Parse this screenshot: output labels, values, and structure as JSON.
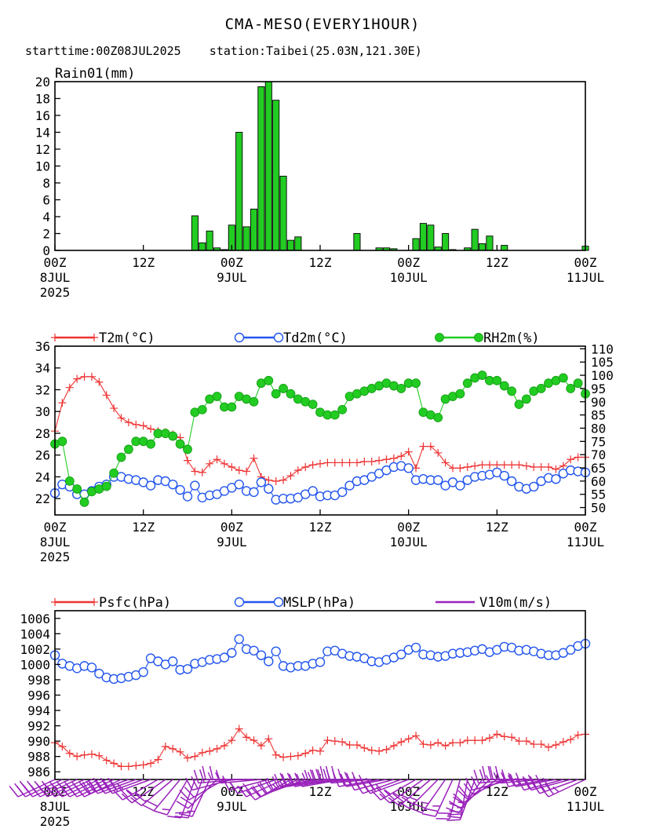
{
  "title": "CMA-MESO(EVERY1HOUR)",
  "subtitle": "starttime:00Z08JUL2025    station:Taibei(25.03N,121.30E)",
  "x_axis": {
    "hours": [
      0,
      12,
      24,
      36,
      48,
      60,
      72
    ],
    "labels": [
      "00Z",
      "12Z",
      "00Z",
      "12Z",
      "00Z",
      "12Z",
      "00Z"
    ],
    "day_labels": {
      "0": "8JUL",
      "24": "9JUL",
      "48": "10JUL",
      "72": "11JUL"
    },
    "year_label": "2025"
  },
  "chart_data": [
    {
      "type": "bar",
      "title": "Rain01(mm)",
      "x_unit": "hours since 00Z08JUL2025",
      "ylim": [
        0,
        20
      ],
      "yticks": [
        0,
        2,
        4,
        6,
        8,
        10,
        12,
        14,
        16,
        18,
        20
      ],
      "color": "#22cc22",
      "x": [
        19,
        20,
        21,
        22,
        23,
        24,
        25,
        26,
        27,
        28,
        29,
        30,
        31,
        32,
        33,
        34,
        35,
        41,
        44,
        45,
        46,
        49,
        50,
        51,
        52,
        53,
        54,
        56,
        57,
        58,
        59,
        61,
        72
      ],
      "values": [
        4.1,
        0.9,
        2.3,
        0.3,
        0.1,
        3.0,
        14.0,
        2.8,
        4.9,
        19.4,
        20.0,
        17.8,
        8.8,
        1.2,
        1.6,
        0,
        0,
        2.0,
        0.3,
        0.3,
        0.2,
        1.4,
        3.2,
        3.0,
        0.4,
        2.0,
        0.1,
        0.3,
        2.5,
        0.8,
        1.7,
        0.6,
        0.5
      ]
    },
    {
      "type": "line",
      "x_unit": "hours since 00Z08JUL2025",
      "left_ylim": [
        20.5,
        36
      ],
      "left_yticks": [
        22,
        24,
        26,
        28,
        30,
        32,
        34,
        36
      ],
      "right_ylim": [
        47.2,
        111
      ],
      "right_yticks": [
        50,
        55,
        60,
        65,
        70,
        75,
        80,
        85,
        90,
        95,
        100,
        105,
        110
      ],
      "series": [
        {
          "name": "T2m(°C)",
          "axis": "left",
          "color": "#ee3333",
          "marker": "plus",
          "x": [
            0,
            1,
            2,
            3,
            4,
            5,
            6,
            7,
            8,
            9,
            10,
            11,
            12,
            13,
            14,
            15,
            16,
            17,
            18,
            19,
            20,
            21,
            22,
            23,
            24,
            25,
            26,
            27,
            28,
            29,
            30,
            31,
            32,
            33,
            34,
            35,
            36,
            37,
            38,
            39,
            40,
            41,
            42,
            43,
            44,
            45,
            46,
            47,
            48,
            49,
            50,
            51,
            52,
            53,
            54,
            55,
            56,
            57,
            58,
            59,
            60,
            61,
            62,
            63,
            64,
            65,
            66,
            67,
            68,
            69,
            70,
            71,
            72
          ],
          "values": [
            28.2,
            30.8,
            32.2,
            33.0,
            33.2,
            33.2,
            32.7,
            31.5,
            30.3,
            29.4,
            29.0,
            28.8,
            28.7,
            28.4,
            28.2,
            28.1,
            27.9,
            27.6,
            25.5,
            24.5,
            24.4,
            25.2,
            25.6,
            25.2,
            24.9,
            24.6,
            24.5,
            25.7,
            24.0,
            23.7,
            23.6,
            23.7,
            24.1,
            24.6,
            24.9,
            25.1,
            25.2,
            25.3,
            25.3,
            25.3,
            25.3,
            25.3,
            25.4,
            25.4,
            25.5,
            25.6,
            25.7,
            25.9,
            26.3,
            24.8,
            26.8,
            26.8,
            26.2,
            25.3,
            24.8,
            24.8,
            24.9,
            25.0,
            25.1,
            25.1,
            25.1,
            25.1,
            25.1,
            25.1,
            25.0,
            24.9,
            24.9,
            24.9,
            24.7,
            25.0,
            25.6,
            25.8,
            25.8
          ]
        },
        {
          "name": "Td2m(°C)",
          "axis": "left",
          "color": "#2255ee",
          "marker": "circle",
          "x": [
            0,
            1,
            2,
            3,
            4,
            5,
            6,
            7,
            8,
            9,
            10,
            11,
            12,
            13,
            14,
            15,
            16,
            17,
            18,
            19,
            20,
            21,
            22,
            23,
            24,
            25,
            26,
            27,
            28,
            29,
            30,
            31,
            32,
            33,
            34,
            35,
            36,
            37,
            38,
            39,
            40,
            41,
            42,
            43,
            44,
            45,
            46,
            47,
            48,
            49,
            50,
            51,
            52,
            53,
            54,
            55,
            56,
            57,
            58,
            59,
            60,
            61,
            62,
            63,
            64,
            65,
            66,
            67,
            68,
            69,
            70,
            71,
            72
          ],
          "values": [
            22.5,
            23.3,
            23.1,
            22.4,
            22.4,
            22.7,
            23.1,
            23.3,
            24.0,
            24.0,
            23.8,
            23.7,
            23.5,
            23.2,
            23.7,
            23.6,
            23.3,
            22.8,
            22.2,
            23.2,
            22.1,
            22.3,
            22.4,
            22.7,
            23.0,
            23.3,
            22.7,
            22.6,
            23.5,
            22.9,
            21.9,
            22.0,
            22.0,
            22.1,
            22.4,
            22.7,
            22.2,
            22.3,
            22.3,
            22.6,
            23.2,
            23.6,
            23.7,
            24.0,
            24.3,
            24.6,
            24.9,
            25.0,
            24.8,
            23.7,
            23.8,
            23.7,
            23.7,
            23.2,
            23.5,
            23.2,
            23.7,
            24.0,
            24.1,
            24.2,
            24.4,
            24.1,
            23.6,
            23.1,
            22.9,
            23.1,
            23.6,
            23.9,
            23.8,
            24.3,
            24.6,
            24.5,
            24.4
          ]
        },
        {
          "name": "RH2m(%)",
          "axis": "right",
          "color": "#22cc22",
          "marker": "filled-circle",
          "x": [
            0,
            1,
            2,
            3,
            4,
            5,
            6,
            7,
            8,
            9,
            10,
            11,
            12,
            13,
            14,
            15,
            16,
            17,
            18,
            19,
            20,
            21,
            22,
            23,
            24,
            25,
            26,
            27,
            28,
            29,
            30,
            31,
            32,
            33,
            34,
            35,
            36,
            37,
            38,
            39,
            40,
            41,
            42,
            43,
            44,
            45,
            46,
            47,
            48,
            49,
            50,
            51,
            52,
            53,
            54,
            55,
            56,
            57,
            58,
            59,
            60,
            61,
            62,
            63,
            64,
            65,
            66,
            67,
            68,
            69,
            70,
            71,
            72
          ],
          "values": [
            74,
            75,
            60,
            57,
            52,
            56,
            57,
            58,
            63,
            69,
            72,
            75,
            75,
            74,
            78,
            78,
            77,
            74,
            72,
            86,
            87,
            91,
            92,
            88,
            88,
            92,
            91,
            90,
            97,
            98,
            93,
            95,
            93,
            91,
            90,
            89,
            86,
            85,
            85,
            87,
            92,
            93,
            94,
            95,
            96,
            97,
            96,
            95,
            97,
            97,
            86,
            85,
            84,
            91,
            92,
            93,
            97,
            99,
            100,
            98,
            98,
            96,
            94,
            89,
            91,
            94,
            95,
            97,
            98,
            99,
            95,
            97,
            93
          ]
        }
      ]
    },
    {
      "type": "line",
      "x_unit": "hours since 00Z08JUL2025",
      "ylim": [
        985,
        1007
      ],
      "yticks": [
        986,
        988,
        990,
        992,
        994,
        996,
        998,
        1000,
        1002,
        1004,
        1006
      ],
      "series": [
        {
          "name": "Psfc(hPa)",
          "color": "#ee3333",
          "marker": "plus",
          "x": [
            0,
            1,
            2,
            3,
            4,
            5,
            6,
            7,
            8,
            9,
            10,
            11,
            12,
            13,
            14,
            15,
            16,
            17,
            18,
            19,
            20,
            21,
            22,
            23,
            24,
            25,
            26,
            27,
            28,
            29,
            30,
            31,
            32,
            33,
            34,
            35,
            36,
            37,
            38,
            39,
            40,
            41,
            42,
            43,
            44,
            45,
            46,
            47,
            48,
            49,
            50,
            51,
            52,
            53,
            54,
            55,
            56,
            57,
            58,
            59,
            60,
            61,
            62,
            63,
            64,
            65,
            66,
            67,
            68,
            69,
            70,
            71,
            72
          ],
          "values": [
            989.8,
            989.3,
            988.4,
            988.0,
            988.2,
            988.3,
            988.1,
            987.5,
            987.1,
            986.7,
            986.7,
            986.8,
            986.9,
            987.1,
            987.6,
            989.3,
            989.0,
            988.6,
            987.8,
            988.0,
            988.5,
            988.7,
            989.0,
            989.4,
            990.1,
            991.6,
            990.5,
            990.1,
            989.4,
            990.3,
            988.2,
            987.9,
            988.0,
            988.1,
            988.4,
            988.8,
            988.7,
            990.1,
            990.0,
            989.9,
            989.5,
            989.5,
            989.1,
            988.8,
            988.7,
            988.9,
            989.4,
            989.9,
            990.3,
            990.7,
            989.6,
            989.5,
            989.8,
            989.4,
            989.8,
            989.8,
            990.1,
            990.1,
            990.1,
            990.4,
            990.9,
            990.6,
            990.5,
            990.0,
            990.0,
            989.6,
            989.6,
            989.2,
            989.5,
            989.9,
            990.2,
            990.8,
            990.9
          ]
        },
        {
          "name": "MSLP(hPa)",
          "color": "#2255ee",
          "marker": "circle",
          "x": [
            0,
            1,
            2,
            3,
            4,
            5,
            6,
            7,
            8,
            9,
            10,
            11,
            12,
            13,
            14,
            15,
            16,
            17,
            18,
            19,
            20,
            21,
            22,
            23,
            24,
            25,
            26,
            27,
            28,
            29,
            30,
            31,
            32,
            33,
            34,
            35,
            36,
            37,
            38,
            39,
            40,
            41,
            42,
            43,
            44,
            45,
            46,
            47,
            48,
            49,
            50,
            51,
            52,
            53,
            54,
            55,
            56,
            57,
            58,
            59,
            60,
            61,
            62,
            63,
            64,
            65,
            66,
            67,
            68,
            69,
            70,
            71,
            72
          ],
          "values": [
            1001.2,
            1000.1,
            999.8,
            999.5,
            999.8,
            999.6,
            998.8,
            998.3,
            998.1,
            998.2,
            998.4,
            998.6,
            999.0,
            1000.8,
            1000.4,
            1000.0,
            1000.4,
            999.3,
            999.4,
            1000.1,
            1000.3,
            1000.6,
            1000.7,
            1000.9,
            1001.5,
            1003.3,
            1002.0,
            1001.8,
            1001.2,
            1000.4,
            1001.7,
            999.8,
            999.6,
            999.8,
            999.8,
            1000.1,
            1000.3,
            1001.7,
            1001.8,
            1001.4,
            1001.1,
            1001.0,
            1000.8,
            1000.4,
            1000.3,
            1000.6,
            1000.9,
            1001.3,
            1001.9,
            1002.2,
            1001.3,
            1001.2,
            1001.0,
            1001.1,
            1001.4,
            1001.5,
            1001.6,
            1001.8,
            1002.0,
            1001.6,
            1001.9,
            1002.3,
            1002.2,
            1001.8,
            1001.9,
            1001.7,
            1001.4,
            1001.2,
            1001.2,
            1001.5,
            1001.9,
            1002.4,
            1002.7
          ]
        },
        {
          "name": "V10m(m/s)",
          "color": "#9922bb",
          "marker": "wind-barb",
          "x": [
            0,
            1,
            2,
            3,
            4,
            5,
            6,
            7,
            8,
            9,
            10,
            11,
            12,
            13,
            14,
            15,
            16,
            17,
            18,
            19,
            20,
            21,
            22,
            23,
            24,
            25,
            26,
            27,
            28,
            29,
            30,
            31,
            32,
            33,
            34,
            35,
            36,
            37,
            38,
            39,
            40,
            41,
            42,
            43,
            44,
            45,
            46,
            47,
            48,
            49,
            50,
            51,
            52,
            53,
            54,
            55,
            56,
            57,
            58,
            59,
            60,
            61,
            62,
            63,
            64,
            65,
            66,
            67,
            68,
            69,
            70,
            71,
            72
          ],
          "speed": [
            6,
            6,
            6,
            6,
            6,
            6,
            6,
            6,
            6,
            6,
            6,
            6,
            6,
            5,
            5,
            5,
            4,
            4,
            3,
            3,
            3,
            3,
            4,
            4,
            4,
            4,
            3,
            3,
            3,
            3,
            3,
            4,
            4,
            4,
            5,
            5,
            5,
            5,
            5,
            6,
            6,
            6,
            6,
            6,
            6,
            6,
            6,
            6,
            5,
            5,
            5,
            5,
            5,
            5,
            5,
            4,
            4,
            5,
            5,
            4,
            4,
            4,
            4,
            5,
            5,
            5,
            5,
            5,
            5,
            6,
            6,
            6,
            5
          ],
          "direction_deg": [
            245,
            245,
            245,
            245,
            245,
            245,
            245,
            245,
            245,
            245,
            250,
            250,
            250,
            250,
            240,
            235,
            230,
            220,
            210,
            200,
            200,
            205,
            225,
            240,
            255,
            265,
            270,
            270,
            265,
            255,
            250,
            245,
            240,
            245,
            250,
            255,
            260,
            260,
            260,
            260,
            265,
            265,
            270,
            265,
            260,
            260,
            255,
            250,
            250,
            240,
            235,
            230,
            225,
            215,
            205,
            195,
            190,
            200,
            215,
            225,
            235,
            245,
            255,
            265,
            270,
            270,
            265,
            260,
            260,
            255,
            255,
            250,
            245
          ]
        }
      ]
    }
  ]
}
